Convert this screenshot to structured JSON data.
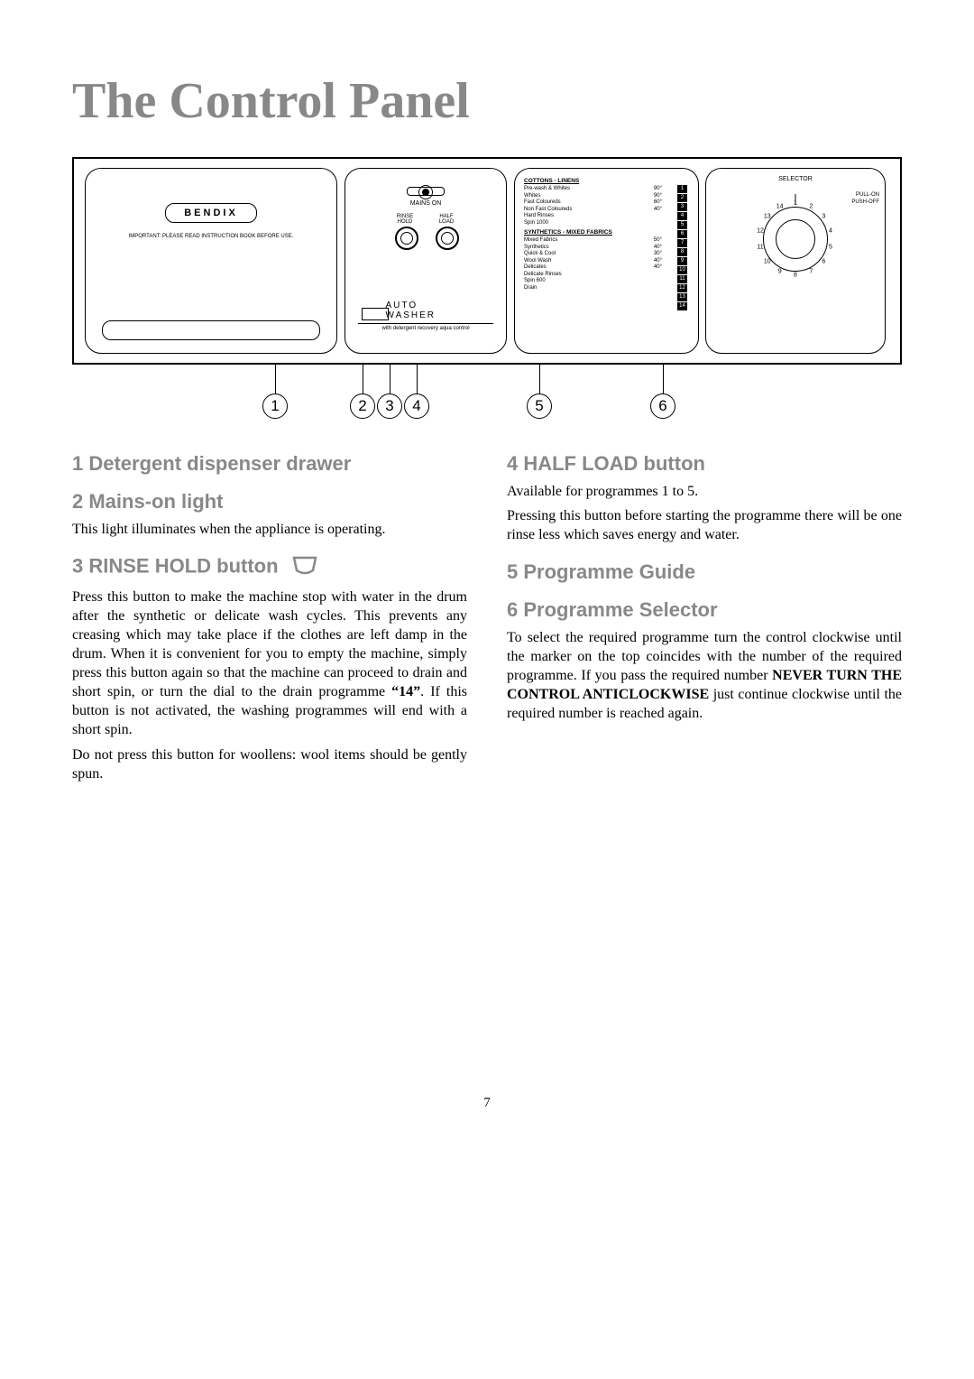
{
  "title": "The Control Panel",
  "brand": "BENDIX",
  "instructionNote": "IMPORTANT: PLEASE READ INSTRUCTION BOOK BEFORE USE.",
  "panel2": {
    "mainsOn": "MAINS ON",
    "rinseHold": "RINSE HOLD",
    "halfLoad": "HALF LOAD",
    "autoWasher": "AUTO WASHER",
    "subline": "with detergent recovery aqua control"
  },
  "prog": {
    "head1": "COTTONS - LINENS",
    "head2": "SYNTHETICS - MIXED FABRICS",
    "group1": [
      {
        "name": "Pre-wash & Whites",
        "temp": "90°"
      },
      {
        "name": "Whites",
        "temp": "90°"
      },
      {
        "name": "Fast Coloureds",
        "temp": "60°"
      },
      {
        "name": "Non Fast Coloureds",
        "temp": "40°"
      },
      {
        "name": "Hard Rinses",
        "temp": ""
      },
      {
        "name": "Spin 1000",
        "temp": ""
      }
    ],
    "group2": [
      {
        "name": "Mixed Fabrics",
        "temp": "50°"
      },
      {
        "name": "Synthetics",
        "temp": "40°"
      },
      {
        "name": "Quick & Cool",
        "temp": "30°"
      },
      {
        "name": "Wool Wash",
        "temp": "40°"
      },
      {
        "name": "Delicates",
        "temp": "40°"
      },
      {
        "name": "Delicate Rinses",
        "temp": ""
      },
      {
        "name": "Spin 600",
        "temp": ""
      },
      {
        "name": "Drain",
        "temp": ""
      }
    ],
    "numbers": [
      "1",
      "2",
      "3",
      "4",
      "5",
      "6",
      "7",
      "8",
      "9",
      "10",
      "11",
      "12",
      "13",
      "14"
    ]
  },
  "selector": {
    "label": "SELECTOR",
    "pullOn": "PULL-ON",
    "pushOff": "PUSH-OFF"
  },
  "markers": [
    "1",
    "2",
    "3",
    "4",
    "5",
    "6"
  ],
  "sections": {
    "s1_title": "1 Detergent dispenser drawer",
    "s2_title": "2 Mains-on light",
    "s2_body": "This light illuminates when the appliance is operating.",
    "s3_title": "3 RINSE HOLD button",
    "s3_body1": "Press this button to make the machine stop with water in the drum after the synthetic or delicate wash cycles. This prevents any creasing which may take place if the clothes are left damp in the drum. When it is convenient for you to empty the machine, simply press this button again so that the machine can proceed to drain and short spin, or turn the dial to the drain programme “14”. If this button is not activated, the washing programmes will end with a short spin.",
    "s3_body2": "Do not press this button for woollens: wool items should be gently spun.",
    "s4_title": "4 HALF LOAD button",
    "s4_body1": "Available for programmes 1 to 5.",
    "s4_body2": "Pressing this button before starting the programme there will be one rinse less which saves energy and water.",
    "s5_title": "5 Programme Guide",
    "s6_title": "6 Programme Selector",
    "s6_body": "To select the required programme turn the control clockwise until the marker on the top coincides with the number of the required programme. If you pass the required number NEVER TURN THE CONTROL ANTICLOCKWISE just continue clockwise until the required number is reached again."
  },
  "pageNumber": "7",
  "colors": {
    "grey": "#888888",
    "black": "#000000"
  }
}
